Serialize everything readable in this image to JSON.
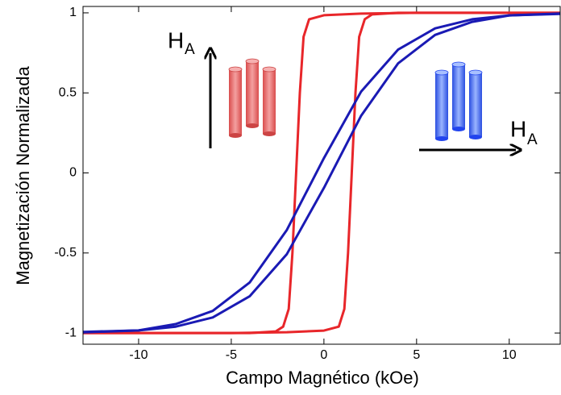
{
  "chart_data": {
    "type": "line",
    "xlabel": "Campo Magnético (kOe)",
    "ylabel": "Magnetización Normalizada",
    "xlim": [
      -13,
      12.75
    ],
    "ylim": [
      -1.07,
      1.04
    ],
    "xticks": [
      -10,
      -5,
      0,
      5,
      10
    ],
    "yticks": [
      -1,
      -0.5,
      0,
      0.5,
      1
    ],
    "grid": false,
    "annotations": [
      {
        "text": "H",
        "sub": "A"
      },
      {
        "text": "H",
        "sub": "A"
      }
    ],
    "series": [
      {
        "color": "#e8262a",
        "x": [
          12.75,
          5,
          2,
          0,
          -0.8,
          -1.1,
          -1.3,
          -1.5,
          -1.7,
          -1.9,
          -2.2,
          -2.6,
          -4,
          -13
        ],
        "values": [
          1,
          1,
          0.995,
          0.985,
          0.96,
          0.85,
          0.5,
          0,
          -0.5,
          -0.85,
          -0.96,
          -0.99,
          -1,
          -1
        ]
      },
      {
        "color": "#e8262a",
        "x": [
          -13,
          -5,
          -2,
          0,
          0.8,
          1.1,
          1.3,
          1.5,
          1.7,
          1.9,
          2.2,
          2.6,
          4,
          12.75
        ],
        "values": [
          -1,
          -1,
          -0.995,
          -0.985,
          -0.96,
          -0.85,
          -0.5,
          0,
          0.5,
          0.85,
          0.96,
          0.99,
          1,
          1
        ]
      },
      {
        "color": "#1a1ab4",
        "x": [
          -13,
          -10,
          -8,
          -6,
          -4,
          -2,
          0,
          2,
          4,
          6,
          8,
          10,
          12.75
        ],
        "values": [
          -0.996,
          -0.984,
          -0.96,
          -0.903,
          -0.77,
          -0.507,
          -0.093,
          0.356,
          0.684,
          0.862,
          0.944,
          0.984,
          0.993
        ]
      },
      {
        "color": "#1a1ab4",
        "x": [
          12.75,
          10,
          8,
          6,
          4,
          2,
          0,
          -2,
          -4,
          -6,
          -8,
          -10,
          -13
        ],
        "values": [
          0.996,
          0.984,
          0.96,
          0.903,
          0.77,
          0.507,
          0.093,
          -0.356,
          -0.684,
          -0.862,
          -0.944,
          -0.984,
          -0.993
        ]
      }
    ]
  }
}
